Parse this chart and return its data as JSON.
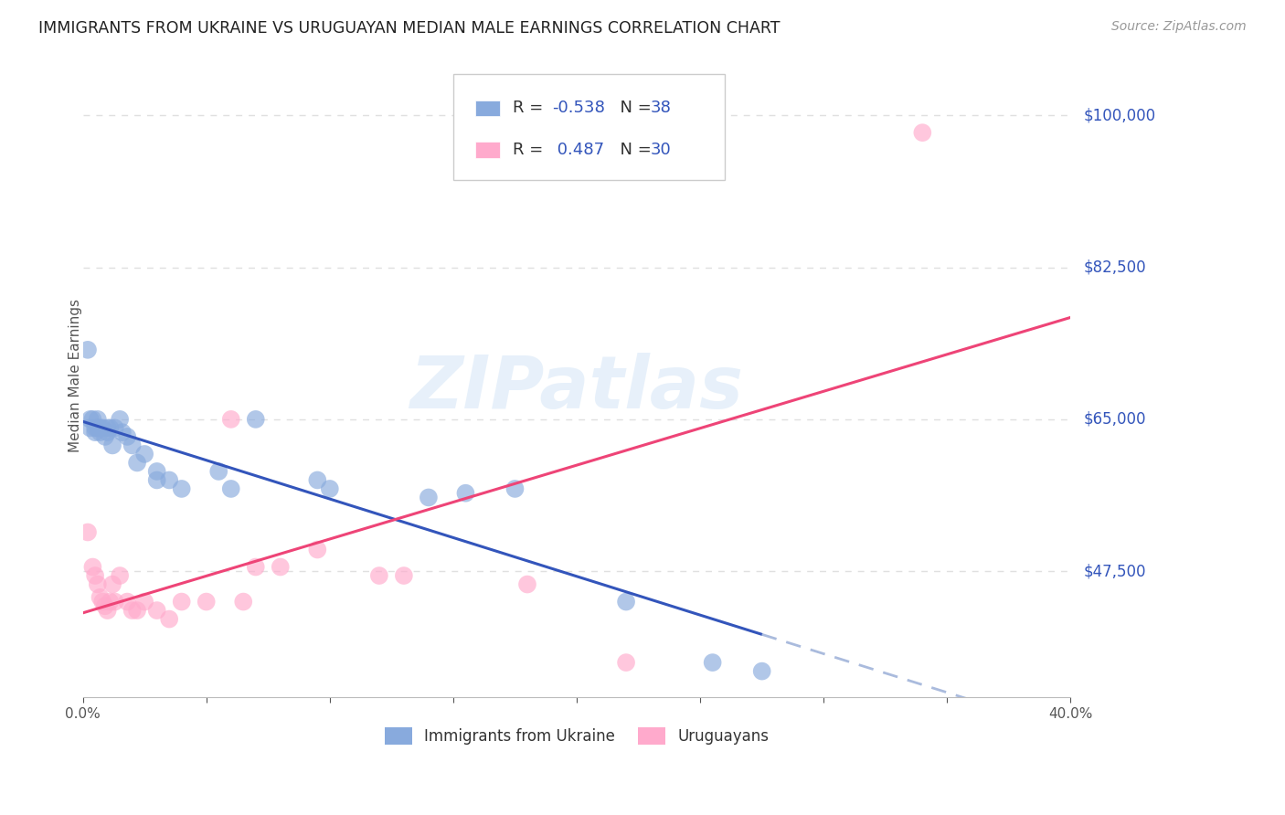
{
  "title": "IMMIGRANTS FROM UKRAINE VS URUGUAYAN MEDIAN MALE EARNINGS CORRELATION CHART",
  "source": "Source: ZipAtlas.com",
  "ylabel": "Median Male Earnings",
  "xlim": [
    0.0,
    0.4
  ],
  "ylim": [
    33000,
    107000
  ],
  "yticks": [
    47500,
    65000,
    82500,
    100000
  ],
  "background_color": "#ffffff",
  "watermark": "ZIPatlas",
  "grid_color": "#e0e0e0",
  "blue_color": "#88aadd",
  "pink_color": "#ffaacc",
  "blue_line_color": "#3355bb",
  "pink_line_color": "#ee4477",
  "blue_line_dash_color": "#aabbdd",
  "legend_label1": "Immigrants from Ukraine",
  "legend_label2": "Uruguayans",
  "ukraine_x": [
    0.002,
    0.003,
    0.003,
    0.004,
    0.005,
    0.005,
    0.006,
    0.006,
    0.007,
    0.007,
    0.008,
    0.009,
    0.01,
    0.01,
    0.011,
    0.012,
    0.013,
    0.015,
    0.016,
    0.018,
    0.02,
    0.022,
    0.025,
    0.03,
    0.03,
    0.035,
    0.04,
    0.055,
    0.06,
    0.07,
    0.095,
    0.1,
    0.14,
    0.155,
    0.175,
    0.22,
    0.255,
    0.275
  ],
  "ukraine_y": [
    73000,
    65000,
    64000,
    65000,
    64000,
    63500,
    65000,
    64000,
    63500,
    64000,
    64000,
    63000,
    64000,
    63500,
    64000,
    62000,
    64000,
    65000,
    63500,
    63000,
    62000,
    60000,
    61000,
    59000,
    58000,
    58000,
    57000,
    59000,
    57000,
    65000,
    58000,
    57000,
    56000,
    56500,
    57000,
    44000,
    37000,
    36000
  ],
  "uruguayan_x": [
    0.002,
    0.004,
    0.005,
    0.006,
    0.007,
    0.008,
    0.009,
    0.01,
    0.011,
    0.012,
    0.013,
    0.015,
    0.018,
    0.02,
    0.022,
    0.025,
    0.03,
    0.035,
    0.04,
    0.05,
    0.06,
    0.065,
    0.07,
    0.08,
    0.095,
    0.12,
    0.13,
    0.18,
    0.22,
    0.34
  ],
  "uruguayan_y": [
    52000,
    48000,
    47000,
    46000,
    44500,
    44000,
    43500,
    43000,
    44000,
    46000,
    44000,
    47000,
    44000,
    43000,
    43000,
    44000,
    43000,
    42000,
    44000,
    44000,
    65000,
    44000,
    48000,
    48000,
    50000,
    47000,
    47000,
    46000,
    37000,
    98000
  ]
}
